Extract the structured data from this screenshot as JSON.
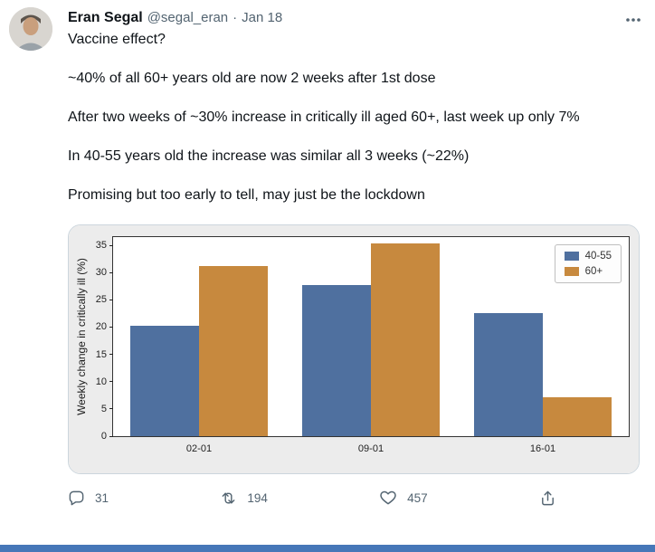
{
  "tweet": {
    "author": "Eran Segal",
    "handle": "@segal_eran",
    "separator": "·",
    "date": "Jan 18",
    "paragraphs": [
      "Vaccine effect?",
      "~40% of all 60+ years old are now 2 weeks after 1st dose",
      "After two weeks of ~30% increase in critically ill aged 60+, last week up only 7%",
      "In 40-55 years old the increase was similar all 3 weeks (~22%)",
      "Promising but too early to tell, may just be the lockdown"
    ],
    "actions": {
      "reply_count": "31",
      "retweet_count": "194",
      "like_count": "457"
    }
  },
  "chart_data": {
    "type": "bar",
    "title": "",
    "xlabel": "",
    "ylabel": "Weekly change in critically ill (%)",
    "categories": [
      "02-01",
      "09-01",
      "16-01"
    ],
    "series": [
      {
        "name": "40-55",
        "color": "#4f709f",
        "values": [
          20.2,
          27.7,
          22.6
        ]
      },
      {
        "name": "60+",
        "color": "#c7893e",
        "values": [
          31.2,
          35.4,
          7.1
        ]
      }
    ],
    "ylim": [
      0,
      36.5
    ],
    "yticks": [
      0,
      5,
      10,
      15,
      20,
      25,
      30,
      35
    ],
    "legend_position": "upper right",
    "grid": false
  },
  "colors": {
    "bottom_bar": "#4677b8",
    "text_secondary": "#536471",
    "figure_bg": "#ececec"
  }
}
